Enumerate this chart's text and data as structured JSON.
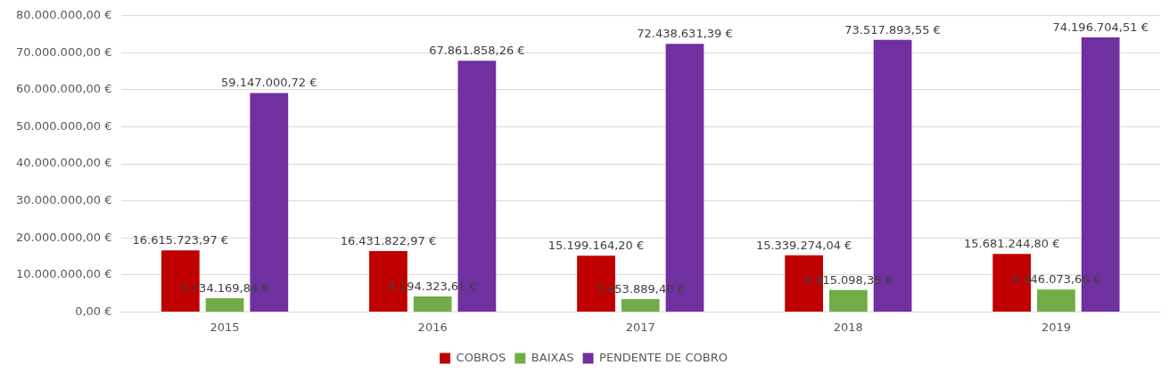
{
  "chart_data": {
    "type": "bar",
    "categories": [
      "2015",
      "2016",
      "2017",
      "2018",
      "2019"
    ],
    "series": [
      {
        "name": "COBROS",
        "color": "#c00000",
        "values": [
          16615723.97,
          16431822.97,
          15199164.2,
          15339274.04,
          15681244.8
        ],
        "value_labels": [
          "16.615.723,97 €",
          "16.431.822,97 €",
          "15.199.164,20 €",
          "15.339.274,04 €",
          "15.681.244,80 €"
        ]
      },
      {
        "name": "BAIXAS",
        "color": "#70ad47",
        "values": [
          3734169.84,
          4194323.61,
          3453889.4,
          5915098.35,
          6046073.66
        ],
        "value_labels": [
          "3.734.169,84 €",
          "4.194.323,61 €",
          "3.453.889,40 €",
          "5.915.098,35 €",
          "6.046.073,66 €"
        ]
      },
      {
        "name": "PENDENTE DE COBRO",
        "color": "#7030a0",
        "values": [
          59147000.72,
          67861858.26,
          72438631.39,
          73517893.55,
          74196704.51
        ],
        "value_labels": [
          "59.147.000,72 €",
          "67.861.858,26 €",
          "72.438.631,39 €",
          "73.517.893,55 €",
          "74.196.704,51 €"
        ]
      }
    ],
    "ylim": [
      0,
      80000000
    ],
    "yticks": [
      {
        "value": 0,
        "label": "0,00 €"
      },
      {
        "value": 10000000,
        "label": "10.000.000,00 €"
      },
      {
        "value": 20000000,
        "label": "20.000.000,00 €"
      },
      {
        "value": 30000000,
        "label": "30.000.000,00 €"
      },
      {
        "value": 40000000,
        "label": "40.000.000,00 €"
      },
      {
        "value": 50000000,
        "label": "50.000.000,00 €"
      },
      {
        "value": 60000000,
        "label": "60.000.000,00 €"
      },
      {
        "value": 70000000,
        "label": "70.000.000,00 €"
      },
      {
        "value": 80000000,
        "label": "80.000.000,00 €"
      }
    ],
    "grid": "y",
    "legend": "bottom"
  }
}
